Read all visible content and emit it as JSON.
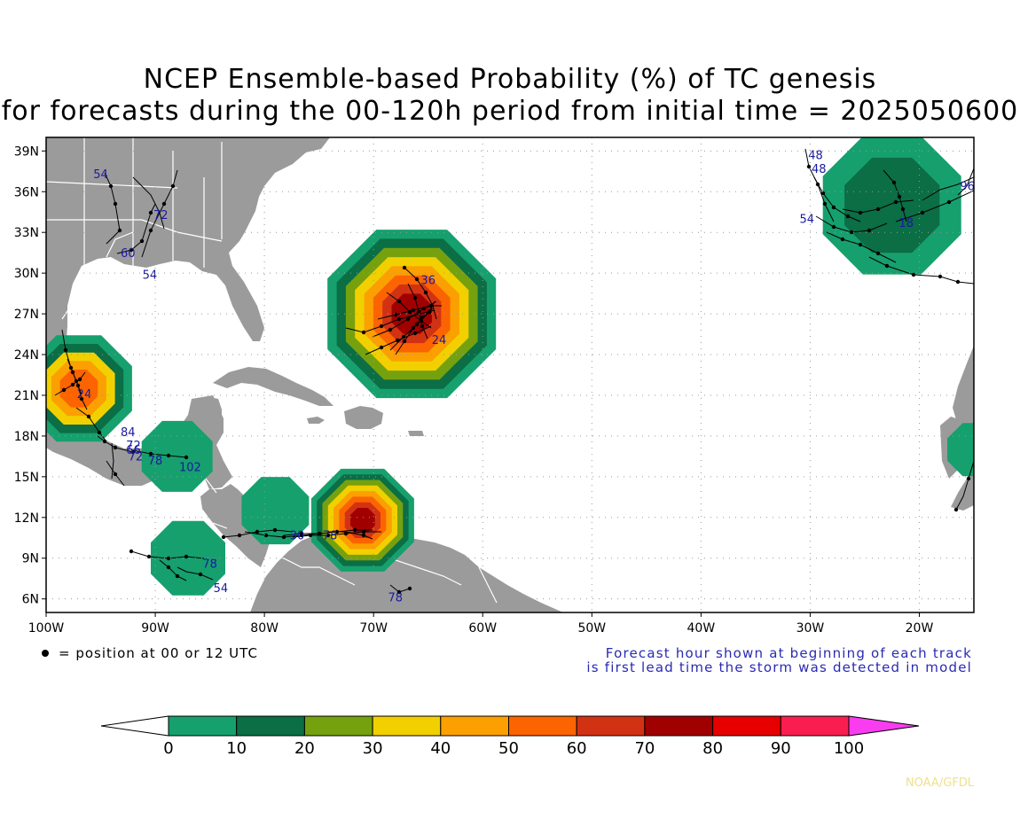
{
  "title": {
    "line1": "NCEP Ensemble-based Probability (%) of TC genesis",
    "line2": "for forecasts during the 00-120h period from initial time = 2025050600"
  },
  "map": {
    "lat_ticks": [
      "39N",
      "36N",
      "33N",
      "30N",
      "27N",
      "24N",
      "21N",
      "18N",
      "15N",
      "12N",
      "9N",
      "6N"
    ],
    "lon_ticks": [
      "100W",
      "90W",
      "80W",
      "70W",
      "60W",
      "50W",
      "40W",
      "30W",
      "20W"
    ],
    "lon_range": [
      -100,
      -15
    ],
    "lat_range": [
      5,
      40
    ],
    "colors": {
      "land": "#9b9b9b",
      "ocean": "#ffffff",
      "border": "#ffffff",
      "track": "#000000",
      "hour_label": "#1a1aa0"
    }
  },
  "legend_note": {
    "marker_text": "= position at 00 or 12 UTC",
    "forecast_line1": "Forecast hour shown at beginning of each track",
    "forecast_line2": "is first lead time the storm was detected in model"
  },
  "colorbar": {
    "labels": [
      "0",
      "10",
      "20",
      "30",
      "40",
      "50",
      "60",
      "70",
      "80",
      "90",
      "100"
    ],
    "colors": [
      "#ffffff",
      "#16a06e",
      "#0b6e45",
      "#76a10e",
      "#f2d000",
      "#fba000",
      "#fb6400",
      "#d23214",
      "#a00000",
      "#e60000",
      "#fa1e50",
      "#fa3cf0"
    ]
  },
  "storms": [
    {
      "lon": -66.5,
      "lat": 27.0,
      "levels": [
        1,
        2,
        3,
        4,
        5,
        6,
        7,
        8
      ]
    },
    {
      "lon": -97.0,
      "lat": 21.5,
      "levels": [
        1,
        2,
        4,
        5,
        6
      ]
    },
    {
      "lon": -71.0,
      "lat": 11.8,
      "levels": [
        1,
        2,
        3,
        4,
        5,
        6,
        7,
        8
      ]
    },
    {
      "lon": -22.5,
      "lat": 35.0,
      "levels": [
        1,
        2
      ]
    }
  ],
  "hour_labels": [
    {
      "text": "54",
      "lon": -95,
      "lat": 37
    },
    {
      "text": "72",
      "lon": -89.5,
      "lat": 34
    },
    {
      "text": "60",
      "lon": -92.5,
      "lat": 31.2
    },
    {
      "text": "54",
      "lon": -90.5,
      "lat": 29.6
    },
    {
      "text": "36",
      "lon": -65,
      "lat": 29.2
    },
    {
      "text": "24",
      "lon": -64,
      "lat": 24.8
    },
    {
      "text": "24",
      "lon": -96.5,
      "lat": 20.8
    },
    {
      "text": "84",
      "lon": -92.5,
      "lat": 18.0
    },
    {
      "text": "72",
      "lon": -92,
      "lat": 17.0
    },
    {
      "text": "66",
      "lon": -92,
      "lat": 16.7
    },
    {
      "text": "78",
      "lon": -90,
      "lat": 15.9
    },
    {
      "text": "72",
      "lon": -91.8,
      "lat": 16.2
    },
    {
      "text": "102",
      "lon": -86.8,
      "lat": 15.4
    },
    {
      "text": "30",
      "lon": -77,
      "lat": 10.4
    },
    {
      "text": "78",
      "lon": -74,
      "lat": 10.4
    },
    {
      "text": "78",
      "lon": -85,
      "lat": 8.3
    },
    {
      "text": "54",
      "lon": -84,
      "lat": 6.5
    },
    {
      "text": "78",
      "lon": -68,
      "lat": 5.8
    },
    {
      "text": "48",
      "lon": -29.5,
      "lat": 38.4
    },
    {
      "text": "48",
      "lon": -29.2,
      "lat": 37.4
    },
    {
      "text": "54",
      "lon": -30.3,
      "lat": 33.7
    },
    {
      "text": "18",
      "lon": -21.2,
      "lat": 33.4
    },
    {
      "text": "96",
      "lon": -15.6,
      "lat": 36.1
    }
  ],
  "credit": "NOAA/GFDL"
}
